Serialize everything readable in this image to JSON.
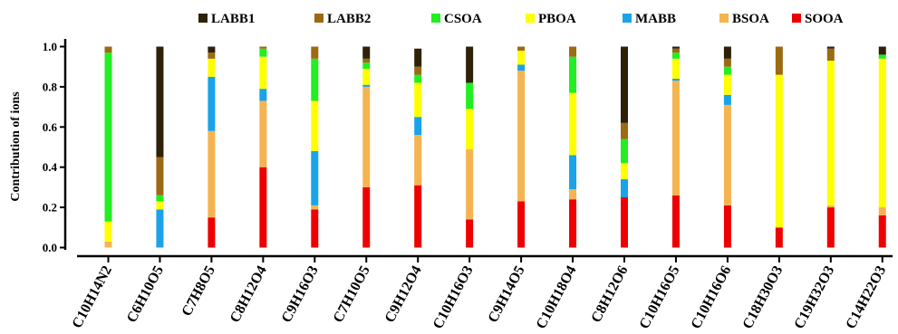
{
  "chart_data": {
    "type": "bar",
    "stacked": true,
    "ylabel": "Contribution of ions",
    "xlabel": "",
    "ylim": [
      0,
      1.0
    ],
    "yticks": [
      "0.0",
      "0.2",
      "0.4",
      "0.6",
      "0.8",
      "1.0"
    ],
    "legend_position": "top",
    "categories": [
      "C10H14N2",
      "C6H10O5",
      "C7H8O5",
      "C8H12O4",
      "C9H16O3",
      "C7H10O5",
      "C9H12O4",
      "C10H16O3",
      "C9H14O5",
      "C10H18O4",
      "C8H12O6",
      "C10H16O5",
      "C10H16O6",
      "C18H30O3",
      "C19H32O3",
      "C14H22O3"
    ],
    "series": [
      {
        "name": "SOOA",
        "color": "#ee0000",
        "values": [
          0.0,
          0.0,
          0.15,
          0.4,
          0.19,
          0.3,
          0.31,
          0.14,
          0.23,
          0.24,
          0.25,
          0.26,
          0.21,
          0.1,
          0.2,
          0.16
        ]
      },
      {
        "name": "BSOA",
        "color": "#f5b450",
        "values": [
          0.03,
          0.0,
          0.43,
          0.33,
          0.02,
          0.5,
          0.25,
          0.35,
          0.65,
          0.05,
          0.0,
          0.57,
          0.5,
          0.0,
          0.01,
          0.04
        ]
      },
      {
        "name": "MABB",
        "color": "#1aa3e8",
        "values": [
          0.0,
          0.19,
          0.27,
          0.06,
          0.27,
          0.01,
          0.09,
          0.0,
          0.03,
          0.17,
          0.09,
          0.01,
          0.05,
          0.0,
          0.0,
          0.0
        ]
      },
      {
        "name": "PBOA",
        "color": "#ffff00",
        "values": [
          0.1,
          0.04,
          0.09,
          0.16,
          0.25,
          0.08,
          0.17,
          0.2,
          0.07,
          0.31,
          0.08,
          0.1,
          0.1,
          0.76,
          0.72,
          0.74
        ]
      },
      {
        "name": "CSOA",
        "color": "#22ee22",
        "values": [
          0.84,
          0.03,
          0.0,
          0.04,
          0.21,
          0.03,
          0.04,
          0.13,
          0.0,
          0.18,
          0.12,
          0.03,
          0.04,
          0.0,
          0.0,
          0.02
        ]
      },
      {
        "name": "LABB2",
        "color": "#9c6a12",
        "values": [
          0.03,
          0.19,
          0.03,
          0.01,
          0.06,
          0.02,
          0.04,
          0.0,
          0.02,
          0.05,
          0.08,
          0.02,
          0.04,
          0.14,
          0.06,
          0.0
        ]
      },
      {
        "name": "LABB1",
        "color": "#2e2108",
        "values": [
          0.0,
          0.55,
          0.03,
          0.0,
          0.0,
          0.06,
          0.09,
          0.18,
          0.0,
          0.0,
          0.38,
          0.01,
          0.06,
          0.0,
          0.01,
          0.04
        ]
      }
    ],
    "legend_order": [
      "LABB1",
      "LABB2",
      "CSOA",
      "PBOA",
      "MABB",
      "BSOA",
      "SOOA"
    ]
  }
}
